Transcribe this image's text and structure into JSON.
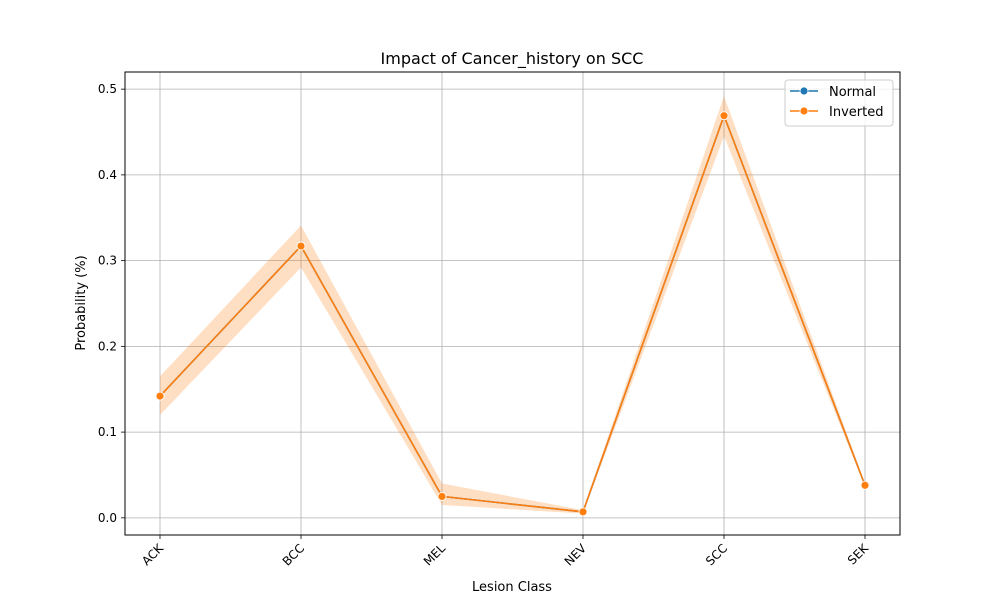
{
  "chart_data": {
    "type": "line",
    "title": "Impact of Cancer_history on SCC",
    "xlabel": "Lesion Class",
    "ylabel": "Probability (%)",
    "categories": [
      "ACK",
      "BCC",
      "MEL",
      "NEV",
      "SCC",
      "SEK"
    ],
    "ylim": [
      -0.02,
      0.52
    ],
    "yticks": [
      0.0,
      0.1,
      0.2,
      0.3,
      0.4,
      0.5
    ],
    "ytick_labels": [
      "0.0",
      "0.1",
      "0.2",
      "0.3",
      "0.4",
      "0.5"
    ],
    "grid": true,
    "legend_position": "top-right",
    "series": [
      {
        "name": "Normal",
        "color": "#1f77b4",
        "values": [
          0.142,
          0.317,
          0.025,
          0.007,
          0.469,
          0.038
        ],
        "band_lower": [
          0.142,
          0.317,
          0.025,
          0.007,
          0.469,
          0.038
        ],
        "band_upper": [
          0.142,
          0.317,
          0.025,
          0.007,
          0.469,
          0.038
        ]
      },
      {
        "name": "Inverted",
        "color": "#ff7f0e",
        "values": [
          0.142,
          0.317,
          0.025,
          0.007,
          0.469,
          0.038
        ],
        "band_lower": [
          0.12,
          0.292,
          0.015,
          0.005,
          0.445,
          0.036
        ],
        "band_upper": [
          0.165,
          0.341,
          0.04,
          0.009,
          0.492,
          0.04
        ]
      }
    ]
  }
}
